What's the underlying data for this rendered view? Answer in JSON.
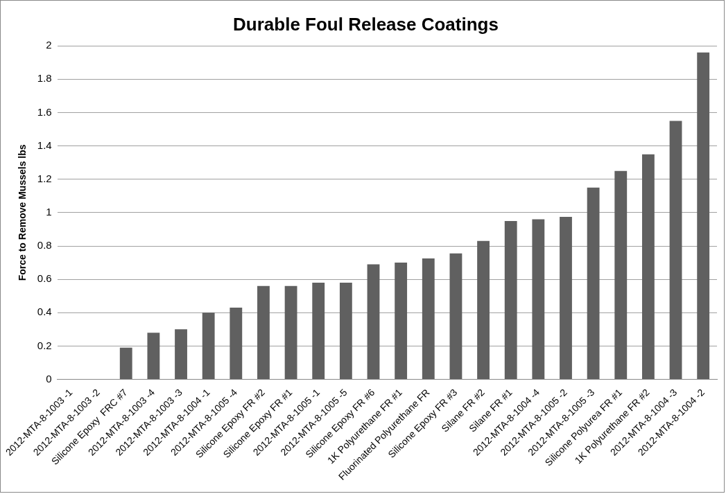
{
  "chart_data": {
    "type": "bar",
    "title": "Durable Foul Release Coatings",
    "ylabel": "Force to Remove Mussels lbs",
    "categories": [
      "2012-MTA-8-1003 -1",
      "2012-MTA-8-1003 -2",
      "Silicone Epoxy  FRC #7",
      "2012-MTA-8-1003 -4",
      "2012-MTA-8-1003 -3",
      "2012-MTA-8-1004 -1",
      "2012-MTA-8-1005 -4",
      "Silicone Epoxy FR #2",
      "Silicone Epoxy FR #1",
      "2012-MTA-8-1005 -1",
      "2012-MTA-8-1005 -5",
      "Silicone Epoxy FR #6",
      "1K Polyurethane FR #1",
      "Fluorinated Polyurethane FR",
      "Silicone Epoxy FR #3",
      "Silane FR #2",
      "Silane FR #1",
      "2012-MTA-8-1004 -4",
      "2012-MTA-8-1005 -2",
      "2012-MTA-8-1005 -3",
      "Silicone Polyurea FR #1",
      "1K Polyurethane FR #2",
      "2012-MTA-8-1004 -3",
      "2012-MTA-8-1004 -2"
    ],
    "values": [
      0,
      0,
      0.19,
      0.28,
      0.3,
      0.4,
      0.43,
      0.56,
      0.56,
      0.58,
      0.58,
      0.69,
      0.7,
      0.725,
      0.755,
      0.83,
      0.95,
      0.96,
      0.975,
      1.15,
      1.25,
      1.35,
      1.55,
      1.96
    ],
    "color": "#606060",
    "ylim": [
      0,
      2
    ],
    "yticks": [
      0,
      0.2,
      0.4,
      0.6,
      0.8,
      1,
      1.2,
      1.4,
      1.6,
      1.8,
      2
    ],
    "grid": "y",
    "legend": false
  }
}
